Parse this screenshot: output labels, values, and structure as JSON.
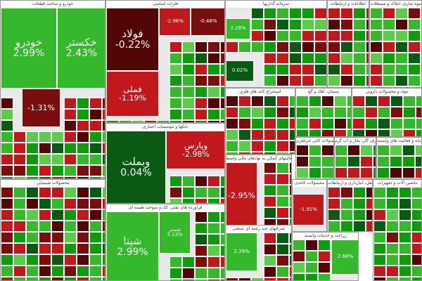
{
  "chart_data": {
    "type": "heatmap",
    "colors": {
      "strong_green": "#0f9a0f",
      "green": "#35b82c",
      "light_green": "#5ccd4a",
      "dark_green": "#0a5a14",
      "red": "#c0181c",
      "dark_red": "#7a0d0d",
      "darkest_red": "#520606"
    },
    "sectors": [
      {
        "name": "خودرو و ساخت قطعات",
        "tiles": [
          {
            "symbol": "خودرو",
            "change": "2.99%",
            "color": "green"
          },
          {
            "symbol": "خکستر",
            "change": "2.43%",
            "color": "green"
          },
          {
            "symbol": "",
            "change": "-1.31%",
            "color": "dark_red"
          }
        ]
      },
      {
        "name": "فلزات اساسی",
        "tiles": [
          {
            "symbol": "فولاد",
            "change": "-0.22%",
            "color": "darkest_red"
          },
          {
            "symbol": "فملی",
            "change": "-1.19%",
            "color": "red"
          },
          {
            "symbol": "",
            "change": "-2.96%",
            "color": "red"
          },
          {
            "symbol": "",
            "change": "-0.48%",
            "color": "dark_red"
          }
        ]
      },
      {
        "name": "بانکها و موسسات اعتباری",
        "tiles": [
          {
            "symbol": "وبملت",
            "change": "0.04%",
            "color": "dark_green"
          },
          {
            "symbol": "وپارس",
            "change": "-2.98%",
            "color": "red"
          }
        ]
      },
      {
        "name": "سرمایه گذاریها",
        "tiles": [
          {
            "symbol": "",
            "change": "2.28%",
            "color": "green"
          },
          {
            "symbol": "",
            "change": "0.02%",
            "color": "dark_green"
          }
        ]
      },
      {
        "name": "اطلاعات و ارتباطات",
        "tiles": []
      },
      {
        "name": "انبوه سازی، املاک و مستغلات",
        "tiles": []
      },
      {
        "name": "محصولات شیمیایی",
        "tiles": []
      },
      {
        "name": "فرآورده های نفتی، کک و سوخت هسته ای",
        "tiles": [
          {
            "symbol": "شپنا",
            "change": "2.99%",
            "color": "green"
          },
          {
            "symbol": "شبندر",
            "change": "2.13%",
            "color": "green"
          }
        ]
      },
      {
        "name": "فعالیتهای کمکی به نهادهای مالی واسط",
        "tiles": [
          {
            "symbol": "",
            "change": "-2.95%",
            "color": "red"
          }
        ]
      },
      {
        "name": "استخراج کانه های فلزی",
        "tiles": []
      },
      {
        "name": "سیمان، آهک و گچ",
        "tiles": []
      },
      {
        "name": "مواد و محصولات دارویی",
        "tiles": []
      },
      {
        "name": "شرکتهای چند رشته ای صنعتی",
        "tiles": [
          {
            "symbol": "",
            "change": "2.39%",
            "color": "green"
          }
        ]
      },
      {
        "name": "زراعت و خدمات وابسته",
        "tiles": [
          {
            "symbol": "",
            "change": "2.66%",
            "color": "green"
          }
        ]
      },
      {
        "name": "حمل و نقل، انبارداری و ارتباطات",
        "tiles": []
      },
      {
        "name": "ماشین آلات و تجهیزات",
        "tiles": []
      },
      {
        "name": "محصولات کاغذی",
        "tiles": [
          {
            "symbol": "",
            "change": "-1.91%",
            "color": "red"
          }
        ]
      },
      {
        "name": "سایر محصولات کانی غیرفلزی",
        "tiles": []
      },
      {
        "name": "عرضه برق، گاز، بخار و آب گرم",
        "tiles": []
      },
      {
        "name": "رایانه و فعالیت های وابسته",
        "tiles": []
      }
    ]
  }
}
